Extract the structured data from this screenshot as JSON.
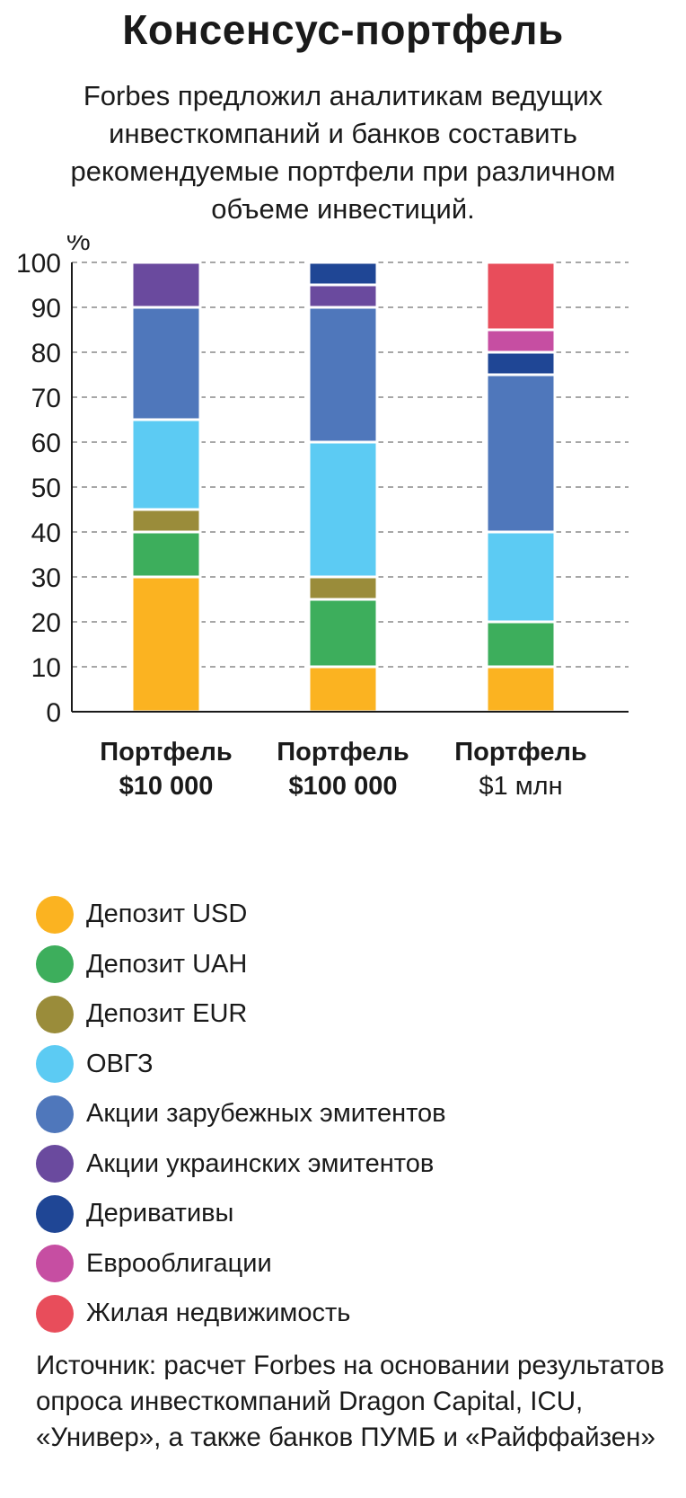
{
  "title": "Консенсус-портфель",
  "subtitle": "Forbes предложил аналитикам ведущих инвесткомпаний и банков составить рекомендуемые портфели при различном объеме инвестиций.",
  "chart_data": {
    "type": "bar",
    "stacked": true,
    "ylabel": "%",
    "ylim": [
      0,
      100
    ],
    "yticks": [
      0,
      10,
      20,
      30,
      40,
      50,
      60,
      70,
      80,
      90,
      100
    ],
    "grid": true,
    "categories": [
      {
        "line1": "Портфель",
        "line2": "$10 000"
      },
      {
        "line1": "Портфель",
        "line2": "$100 000"
      },
      {
        "line1": "Портфель",
        "line2": "$1 млн"
      }
    ],
    "series": [
      {
        "name": "Депозит USD",
        "color": "#fbb321",
        "values": [
          30,
          10,
          10
        ]
      },
      {
        "name": "Депозит  UAH",
        "color": "#3dae5c",
        "values": [
          10,
          15,
          10
        ]
      },
      {
        "name": "Депозит  EUR",
        "color": "#9a8c3a",
        "values": [
          5,
          5,
          0
        ]
      },
      {
        "name": "ОВГЗ",
        "color": "#5ccbf3",
        "values": [
          20,
          30,
          20
        ]
      },
      {
        "name": "Акции зарубежных эмитентов",
        "color": "#4f77bb",
        "values": [
          25,
          30,
          35
        ]
      },
      {
        "name": "Акции украинских эмитентов",
        "color": "#6a4a9e",
        "values": [
          10,
          5,
          0
        ]
      },
      {
        "name": "Деривативы",
        "color": "#1f4695",
        "values": [
          0,
          5,
          5
        ]
      },
      {
        "name": "Еврооблигации",
        "color": "#c64ea2",
        "values": [
          0,
          0,
          5
        ]
      },
      {
        "name": "Жилая недвижимость",
        "color": "#e84d5b",
        "values": [
          0,
          0,
          15
        ]
      }
    ]
  },
  "source": "Источник: расчет Forbes на основании результатов опроса инвесткомпаний Dragon Capital, ICU, «Универ», а также банков ПУМБ и «Райффайзен»"
}
